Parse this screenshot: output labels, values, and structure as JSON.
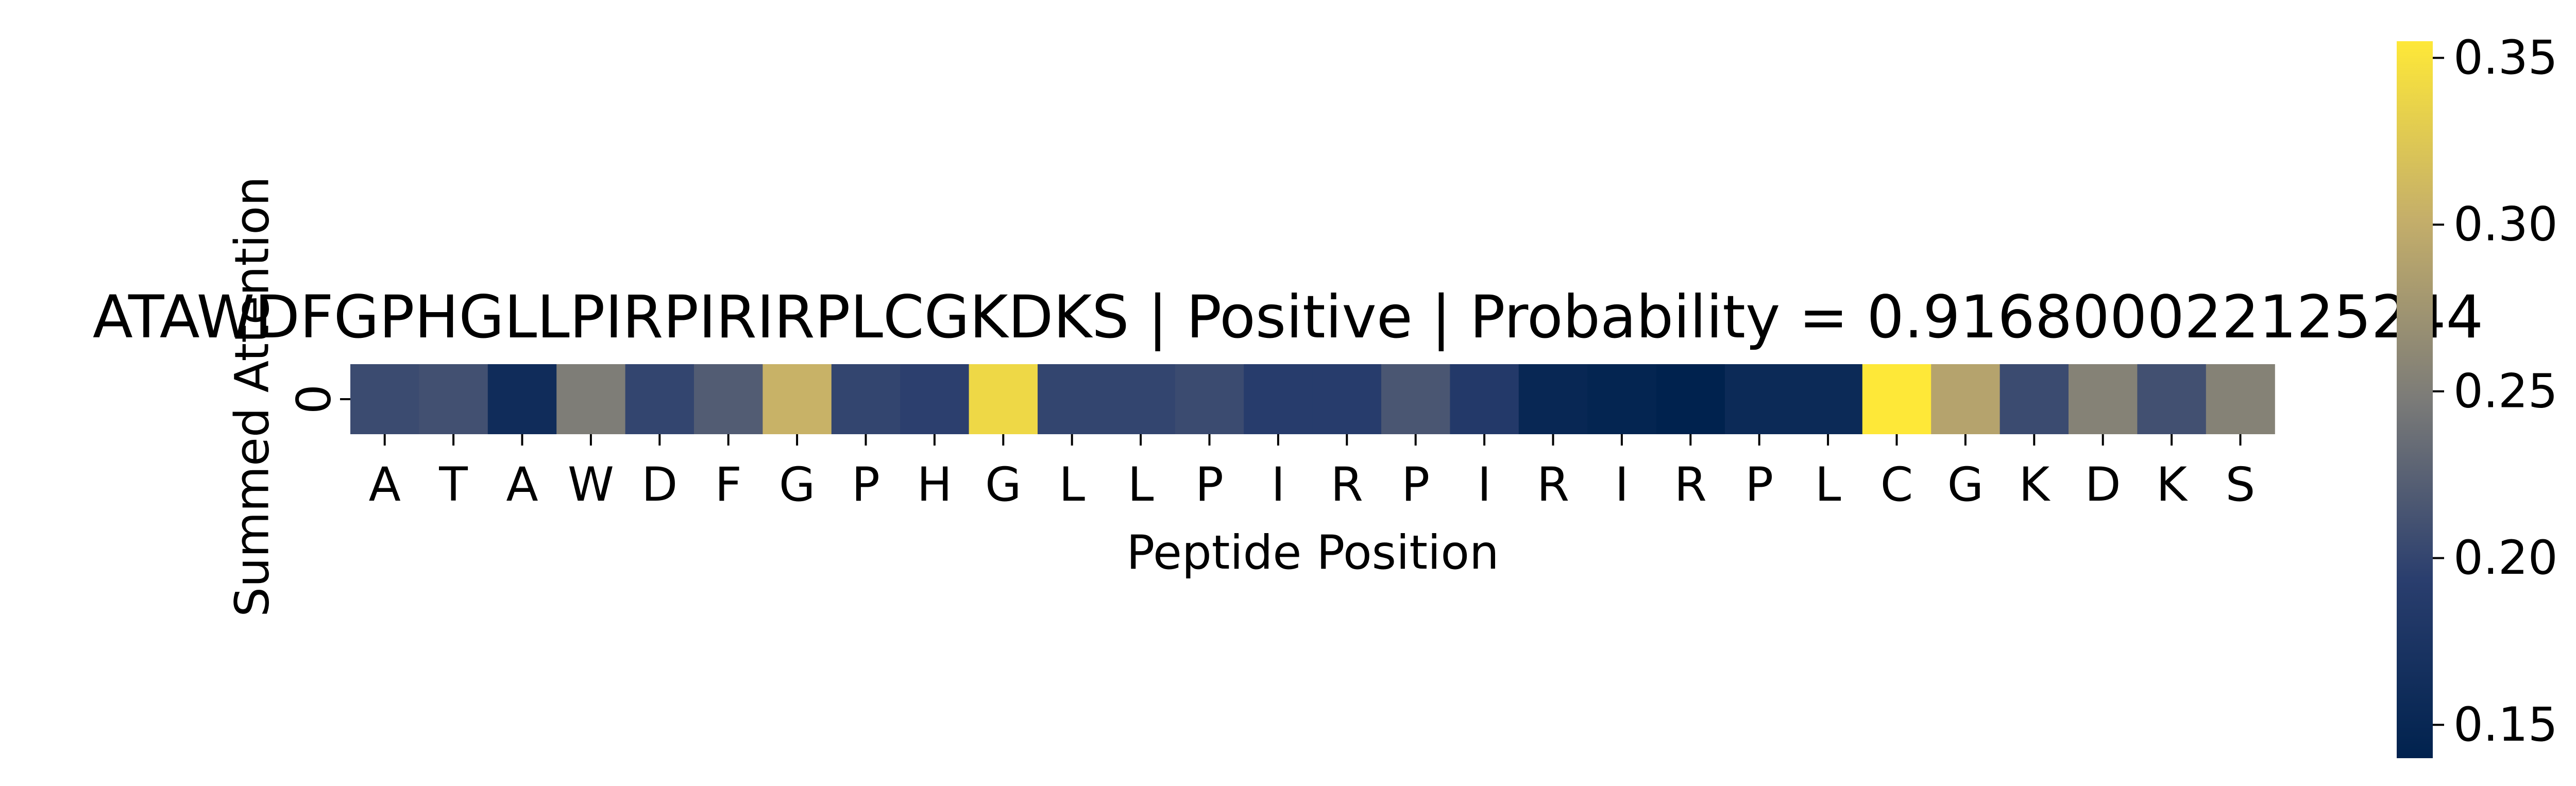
{
  "chart_data": {
    "type": "heatmap",
    "title": "ATAWDFGPHGLLPIRPIRIRPLCGKDKS | Positive | Probability = 0.916800022125244",
    "xlabel": "Peptide Position",
    "ylabel": "Summed Attention",
    "y_categories": [
      "0"
    ],
    "x_categories": [
      "A",
      "T",
      "A",
      "W",
      "D",
      "F",
      "G",
      "P",
      "H",
      "G",
      "L",
      "L",
      "P",
      "I",
      "R",
      "P",
      "I",
      "R",
      "I",
      "R",
      "P",
      "L",
      "C",
      "G",
      "K",
      "D",
      "K",
      "S"
    ],
    "values": [
      0.205,
      0.21,
      0.16,
      0.25,
      0.2,
      0.22,
      0.305,
      0.2,
      0.195,
      0.34,
      0.2,
      0.2,
      0.205,
      0.19,
      0.19,
      0.215,
      0.185,
      0.15,
      0.145,
      0.14,
      0.155,
      0.155,
      0.355,
      0.29,
      0.205,
      0.255,
      0.21,
      0.255
    ],
    "colormap": "cividis",
    "colorbar": {
      "range": [
        0.14,
        0.355
      ],
      "ticks": [
        0.15,
        0.2,
        0.25,
        0.3,
        0.35
      ],
      "tick_labels": [
        "0.15",
        "0.20",
        "0.25",
        "0.30",
        "0.35"
      ]
    },
    "grid": false
  }
}
